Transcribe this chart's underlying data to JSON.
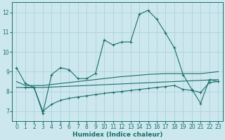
{
  "xlabel": "Humidex (Indice chaleur)",
  "bg_color": "#cce8ee",
  "grid_color": "#aaccd4",
  "line_color": "#1a6e68",
  "xlim": [
    -0.5,
    23.5
  ],
  "ylim": [
    6.5,
    12.5
  ],
  "yticks": [
    7,
    8,
    9,
    10,
    11,
    12
  ],
  "xticks": [
    0,
    1,
    2,
    3,
    4,
    5,
    6,
    7,
    8,
    9,
    10,
    11,
    12,
    13,
    14,
    15,
    16,
    17,
    18,
    19,
    20,
    21,
    22,
    23
  ],
  "s1_x": [
    0,
    1,
    2,
    3,
    4,
    5,
    6,
    7,
    8,
    9,
    10,
    11,
    12,
    13,
    14,
    15,
    16,
    17,
    18,
    19,
    20,
    21,
    22,
    23
  ],
  "s1_y": [
    9.2,
    8.4,
    8.2,
    6.9,
    8.85,
    9.2,
    9.1,
    8.65,
    8.65,
    8.9,
    10.6,
    10.35,
    10.5,
    10.5,
    11.9,
    12.1,
    11.65,
    10.95,
    10.2,
    8.85,
    8.1,
    7.4,
    8.6,
    8.5
  ],
  "s2_x": [
    0,
    1,
    2,
    3,
    4,
    5,
    6,
    7,
    8,
    9,
    10,
    11,
    12,
    13,
    14,
    15,
    16,
    17,
    18,
    19,
    20,
    21,
    22,
    23
  ],
  "s2_y": [
    8.5,
    8.3,
    8.3,
    8.3,
    8.35,
    8.4,
    8.45,
    8.5,
    8.55,
    8.6,
    8.65,
    8.7,
    8.75,
    8.78,
    8.82,
    8.86,
    8.88,
    8.9,
    8.9,
    8.9,
    8.9,
    8.9,
    8.95,
    9.0
  ],
  "s3_x": [
    0,
    1,
    2,
    3,
    4,
    5,
    6,
    7,
    8,
    9,
    10,
    11,
    12,
    13,
    14,
    15,
    16,
    17,
    18,
    19,
    20,
    21,
    22,
    23
  ],
  "s3_y": [
    8.2,
    8.2,
    8.2,
    8.2,
    8.22,
    8.24,
    8.26,
    8.28,
    8.3,
    8.32,
    8.34,
    8.36,
    8.38,
    8.4,
    8.42,
    8.44,
    8.46,
    8.48,
    8.5,
    8.52,
    8.54,
    8.56,
    8.58,
    8.6
  ],
  "s4_x": [
    1,
    2,
    3,
    4,
    5,
    6,
    7,
    8,
    9,
    10,
    11,
    12,
    13,
    14,
    15,
    16,
    17,
    18,
    19,
    20,
    21,
    22,
    23
  ],
  "s4_y": [
    8.2,
    8.2,
    7.0,
    7.35,
    7.55,
    7.65,
    7.72,
    7.78,
    7.84,
    7.9,
    7.95,
    8.0,
    8.05,
    8.1,
    8.15,
    8.2,
    8.25,
    8.3,
    8.1,
    8.05,
    7.95,
    8.45,
    8.5
  ]
}
